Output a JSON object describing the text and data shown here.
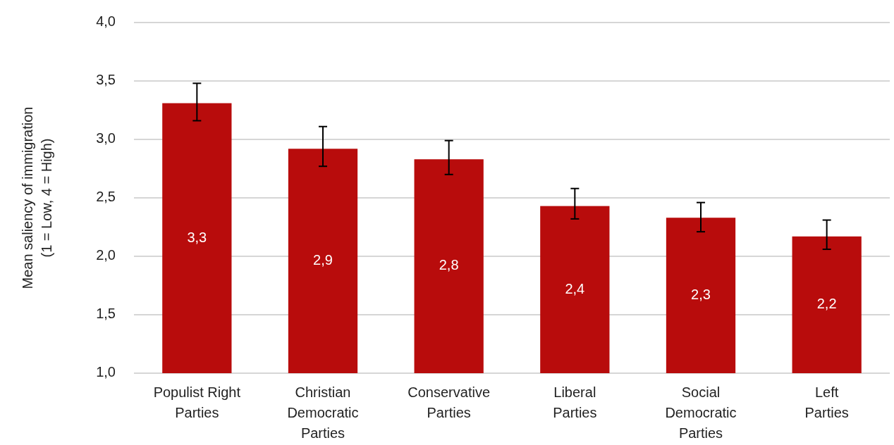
{
  "chart_data": {
    "type": "bar",
    "ylabel": "Mean saliency of immigration\n(1 = Low, 4 = High)",
    "categories": [
      "Populist Right\nParties",
      "Christian\nDemocratic\nParties",
      "Conservative\nParties",
      "Liberal\nParties",
      "Social\nDemocratic\nParties",
      "Left\nParties"
    ],
    "values": [
      3.31,
      2.92,
      2.83,
      2.43,
      2.33,
      2.17
    ],
    "errors": [
      [
        3.16,
        3.48
      ],
      [
        2.77,
        3.11
      ],
      [
        2.7,
        2.99
      ],
      [
        2.32,
        2.58
      ],
      [
        2.21,
        2.46
      ],
      [
        2.06,
        2.31
      ]
    ],
    "value_labels": [
      "3,3",
      "2,9",
      "2,8",
      "2,4",
      "2,3",
      "2,2"
    ],
    "color": "#b80c0c",
    "ylim": [
      1,
      4
    ],
    "yticks": [
      {
        "value": 1,
        "label": "1,0"
      },
      {
        "value": 1.5,
        "label": "1,5"
      },
      {
        "value": 2,
        "label": "2,0"
      },
      {
        "value": 2.5,
        "label": "2,5"
      },
      {
        "value": 3,
        "label": "3,0"
      },
      {
        "value": 3.5,
        "label": "3,5"
      },
      {
        "value": 4,
        "label": "4,0"
      }
    ],
    "grid": "y"
  }
}
